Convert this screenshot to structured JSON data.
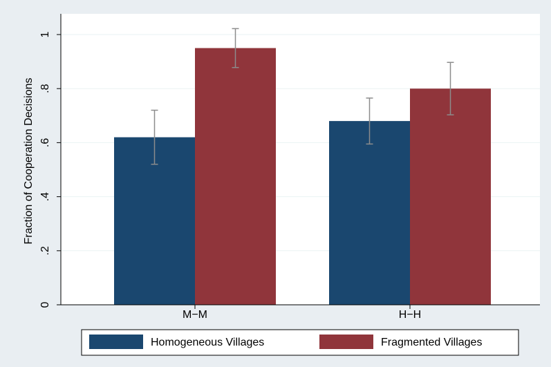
{
  "chart_data": {
    "type": "bar",
    "categories": [
      "M−M",
      "H−H"
    ],
    "series": [
      {
        "name": "Homogeneous Villages",
        "color": "#1a476f",
        "values": [
          0.62,
          0.68
        ],
        "ci_low": [
          0.52,
          0.595
        ],
        "ci_high": [
          0.72,
          0.765
        ]
      },
      {
        "name": "Fragmented Villages",
        "color": "#90353b",
        "values": [
          0.95,
          0.8
        ],
        "ci_low": [
          0.878,
          0.703
        ],
        "ci_high": [
          1.022,
          0.897
        ]
      }
    ],
    "xlabel": "",
    "ylabel": "Fraction of Cooperation Decisions",
    "ylim": [
      0,
      1.05
    ],
    "yticks": [
      0,
      0.2,
      0.4,
      0.6,
      0.8,
      1
    ],
    "ytick_labels": [
      "0",
      ".2",
      ".4",
      ".6",
      ".8",
      "1"
    ],
    "grid": true,
    "legend_position": "bottom",
    "errorbar_color": "#8c8c8c"
  }
}
